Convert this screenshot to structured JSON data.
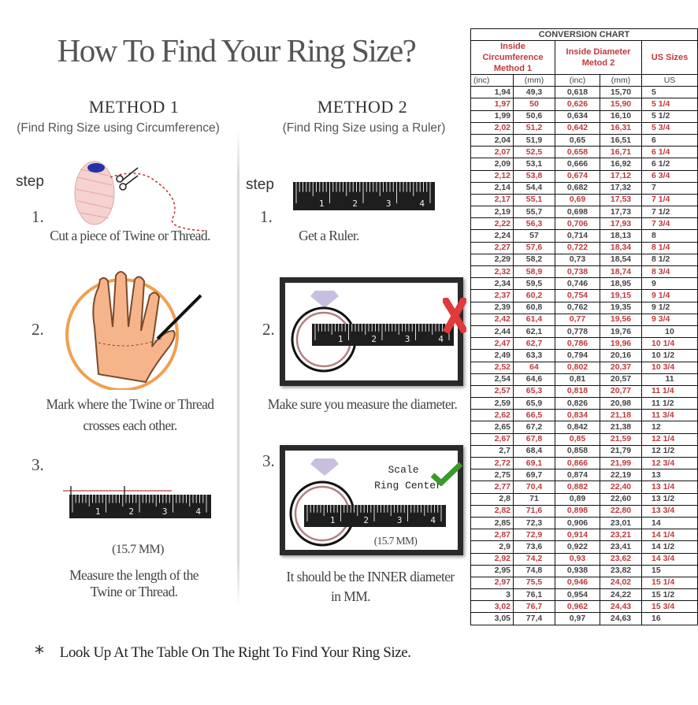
{
  "title": "How To Find Your Ring Size?",
  "ruler_labels": [
    "1",
    "2",
    "3",
    "4"
  ],
  "method1": {
    "heading": "METHOD 1",
    "subheading": "(Find Ring Size using Circumference)",
    "step_label": "step",
    "steps": [
      {
        "num": "1.",
        "caption": [
          "Cut a piece of  Twine or Thread."
        ]
      },
      {
        "num": "2.",
        "caption": [
          "Mark where the Twine or Thread",
          "crosses each other."
        ]
      },
      {
        "num": "3.",
        "measure": "(15.7 MM)",
        "caption": [
          "Measure the length of the",
          "Twine or Thread."
        ]
      }
    ]
  },
  "method2": {
    "heading": "METHOD 2",
    "subheading": "(Find Ring Size using a Ruler)",
    "step_label": "step",
    "steps": [
      {
        "num": "1.",
        "caption": [
          "Get a Ruler."
        ]
      },
      {
        "num": "2.",
        "caption": [
          "Make sure you measure the diameter."
        ]
      },
      {
        "num": "3.",
        "scale_text": [
          "Scale",
          "Ring Center"
        ],
        "measure": "(15.7 MM)",
        "caption": [
          "It should be the INNER diameter",
          "in MM."
        ]
      }
    ]
  },
  "footer": {
    "bullet": "*",
    "text": "Look Up At The Table On The Right To Find Your Ring Size."
  },
  "colors": {
    "accent_red": "#c0393c",
    "check_green": "#3a9a2a",
    "cross_red": "#e03a3a",
    "diamond": "#c8bfe0"
  },
  "table": {
    "title": "CONVERSION CHART",
    "group_headers": [
      {
        "line1": "Inside Circumference",
        "line2": "Method 1"
      },
      {
        "line1": "Inside Diameter",
        "line2": "Metod 2"
      },
      {
        "line1": "US Sizes"
      }
    ],
    "units": [
      "(inc)",
      "(mm)",
      "(inc)",
      "(mm)",
      "US"
    ],
    "rows": [
      [
        "1,94",
        "49,3",
        "0,618",
        "15,70",
        "5"
      ],
      [
        "1,97",
        "50",
        "0,626",
        "15,90",
        "5 1/4"
      ],
      [
        "1,99",
        "50,6",
        "0,634",
        "16,10",
        "5 1/2"
      ],
      [
        "2,02",
        "51,2",
        "0,642",
        "16,31",
        "5 3/4"
      ],
      [
        "2,04",
        "51,9",
        "0,65",
        "16,51",
        "6"
      ],
      [
        "2,07",
        "52,5",
        "0,658",
        "16,71",
        "6 1/4"
      ],
      [
        "2,09",
        "53,1",
        "0,666",
        "16,92",
        "6 1/2"
      ],
      [
        "2,12",
        "53,8",
        "0,674",
        "17,12",
        "6 3/4"
      ],
      [
        "2,14",
        "54,4",
        "0,682",
        "17,32",
        "7"
      ],
      [
        "2,17",
        "55,1",
        "0,69",
        "17,53",
        "7 1/4"
      ],
      [
        "2,19",
        "55,7",
        "0,698",
        "17,73",
        "7 1/2"
      ],
      [
        "2,22",
        "56,3",
        "0,706",
        "17,93",
        "7 3/4"
      ],
      [
        "2,24",
        "57",
        "0,714",
        "18,13",
        "8"
      ],
      [
        "2,27",
        "57,6",
        "0,722",
        "18,34",
        "8 1/4"
      ],
      [
        "2,29",
        "58,2",
        "0,73",
        "18,54",
        "8 1/2"
      ],
      [
        "2,32",
        "58,9",
        "0,738",
        "18,74",
        "8 3/4"
      ],
      [
        "2,34",
        "59,5",
        "0,746",
        "18,95",
        "9"
      ],
      [
        "2,37",
        "60,2",
        "0,754",
        "19,15",
        "9 1/4"
      ],
      [
        "2,39",
        "60,8",
        "0,762",
        "19,35",
        "9 1/2"
      ],
      [
        "2,42",
        "61,4",
        "0,77",
        "19,56",
        "9 3/4"
      ],
      [
        "2,44",
        "62,1",
        "0,778",
        "19,76",
        "10"
      ],
      [
        "2,47",
        "62,7",
        "0,786",
        "19,96",
        "10 1/4"
      ],
      [
        "2,49",
        "63,3",
        "0,794",
        "20,16",
        "10 1/2"
      ],
      [
        "2,52",
        "64",
        "0,802",
        "20,37",
        "10 3/4"
      ],
      [
        "2,54",
        "64,6",
        "0,81",
        "20,57",
        "11"
      ],
      [
        "2,57",
        "65,3",
        "0,818",
        "20,77",
        "11 1/4"
      ],
      [
        "2,59",
        "65,9",
        "0,826",
        "20,98",
        "11 1/2"
      ],
      [
        "2,62",
        "66,5",
        "0,834",
        "21,18",
        "11 3/4"
      ],
      [
        "2,65",
        "67,2",
        "0,842",
        "21,38",
        "12"
      ],
      [
        "2,67",
        "67,8",
        "0,85",
        "21,59",
        "12 1/4"
      ],
      [
        "2,7",
        "68,4",
        "0,858",
        "21,79",
        "12 1/2"
      ],
      [
        "2,72",
        "69,1",
        "0,866",
        "21,99",
        "12 3/4"
      ],
      [
        "2,75",
        "69,7",
        "0,874",
        "22,19",
        "13"
      ],
      [
        "2,77",
        "70,4",
        "0,882",
        "22,40",
        "13 1/4"
      ],
      [
        "2,8",
        "71",
        "0,89",
        "22,60",
        "13 1/2"
      ],
      [
        "2,82",
        "71,6",
        "0,898",
        "22,80",
        "13 3/4"
      ],
      [
        "2,85",
        "72,3",
        "0,906",
        "23,01",
        "14"
      ],
      [
        "2,87",
        "72,9",
        "0,914",
        "23,21",
        "14 1/4"
      ],
      [
        "2,9",
        "73,6",
        "0,922",
        "23,41",
        "14 1/2"
      ],
      [
        "2,92",
        "74,2",
        "0,93",
        "23,62",
        "14 3/4"
      ],
      [
        "2,95",
        "74,8",
        "0,938",
        "23,82",
        "15"
      ],
      [
        "2,97",
        "75,5",
        "0,946",
        "24,02",
        "15 1/4"
      ],
      [
        "3",
        "76,1",
        "0,954",
        "24,22",
        "15 1/2"
      ],
      [
        "3,02",
        "76,7",
        "0,962",
        "24,43",
        "15 3/4"
      ],
      [
        "3,05",
        "77,4",
        "0,97",
        "24,63",
        "16"
      ]
    ]
  }
}
